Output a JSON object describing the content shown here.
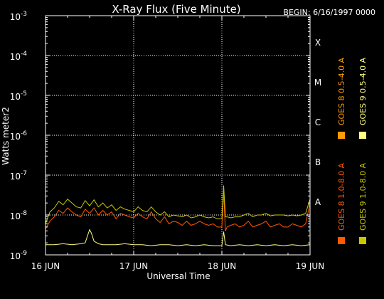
{
  "chart_data": {
    "type": "line",
    "title": "X-Ray Flux (Five Minute)",
    "begin_label": "BEGIN: 6/16/1997 0000",
    "ylabel": "Watts meter2",
    "xlabel": "Universal Time",
    "xlim": [
      "16 JUN",
      "19 JUN"
    ],
    "xticks": [
      "16 JUN",
      "17 JUN",
      "18 JUN",
      "19 JUN"
    ],
    "yscale": "log",
    "ylim": [
      1e-09,
      0.001
    ],
    "yticks": [
      {
        "base": "10",
        "exp": "-9"
      },
      {
        "base": "10",
        "exp": "-8"
      },
      {
        "base": "10",
        "exp": "-7"
      },
      {
        "base": "10",
        "exp": "-6"
      },
      {
        "base": "10",
        "exp": "-5"
      },
      {
        "base": "10",
        "exp": "-4"
      },
      {
        "base": "10",
        "exp": "-3"
      }
    ],
    "flare_classes": [
      {
        "label": "X",
        "flux": 0.0001
      },
      {
        "label": "M",
        "flux": 1e-05
      },
      {
        "label": "C",
        "flux": 1e-06
      },
      {
        "label": "B",
        "flux": 1e-07
      },
      {
        "label": "A",
        "flux": 1e-08
      }
    ],
    "grid": true,
    "series": [
      {
        "name": "GOES 8 1.0-8.0 A",
        "color": "#ff5a00",
        "x": [
          0.0,
          0.05,
          0.1,
          0.15,
          0.2,
          0.25,
          0.3,
          0.35,
          0.4,
          0.45,
          0.5,
          0.55,
          0.6,
          0.65,
          0.7,
          0.75,
          0.8,
          0.85,
          0.9,
          0.95,
          1.0,
          1.05,
          1.1,
          1.15,
          1.2,
          1.25,
          1.3,
          1.35,
          1.4,
          1.45,
          1.5,
          1.55,
          1.6,
          1.65,
          1.7,
          1.75,
          1.8,
          1.85,
          1.9,
          1.95,
          2.0,
          2.02,
          2.04,
          2.06,
          2.1,
          2.15,
          2.2,
          2.25,
          2.3,
          2.35,
          2.4,
          2.45,
          2.5,
          2.55,
          2.6,
          2.65,
          2.7,
          2.75,
          2.8,
          2.85,
          2.9,
          2.95,
          3.0
        ],
        "y": [
          4.5e-09,
          7e-09,
          9e-09,
          1.3e-08,
          1.1e-08,
          1.5e-08,
          1.2e-08,
          1e-08,
          9e-09,
          1.4e-08,
          1.1e-08,
          1.5e-08,
          1e-08,
          1.3e-08,
          1e-08,
          1.2e-08,
          8e-09,
          1.1e-08,
          1e-08,
          9e-09,
          8.5e-09,
          1.1e-08,
          9e-09,
          8e-09,
          1.2e-08,
          8e-09,
          6.5e-09,
          9e-09,
          6e-09,
          7e-09,
          6.5e-09,
          5.5e-09,
          7e-09,
          5.5e-09,
          6e-09,
          7e-09,
          6e-09,
          5.5e-09,
          6e-09,
          5e-09,
          5e-09,
          3.8e-08,
          4e-09,
          5e-09,
          5.5e-09,
          6e-09,
          5e-09,
          5.5e-09,
          7e-09,
          5e-09,
          5.5e-09,
          6e-09,
          7e-09,
          5e-09,
          5.5e-09,
          6e-09,
          5e-09,
          5e-09,
          6e-09,
          5.5e-09,
          5e-09,
          6e-09,
          2e-08
        ]
      },
      {
        "name": "GOES 8 0.5-4.0 A",
        "color": "#ff9a00",
        "x": [
          0.0,
          3.0
        ],
        "y": [
          null,
          null
        ]
      },
      {
        "name": "GOES 9 1.0-8.0 A",
        "color": "#c8c800",
        "x": [
          0.0,
          0.05,
          0.1,
          0.15,
          0.2,
          0.25,
          0.3,
          0.35,
          0.4,
          0.45,
          0.5,
          0.55,
          0.6,
          0.65,
          0.7,
          0.75,
          0.8,
          0.85,
          0.9,
          0.95,
          1.0,
          1.05,
          1.1,
          1.15,
          1.2,
          1.25,
          1.3,
          1.35,
          1.4,
          1.45,
          1.5,
          1.55,
          1.6,
          1.65,
          1.7,
          1.75,
          1.8,
          1.85,
          1.9,
          1.95,
          2.0,
          2.02,
          2.04,
          2.06,
          2.1,
          2.15,
          2.2,
          2.25,
          2.3,
          2.35,
          2.4,
          2.45,
          2.5,
          2.55,
          2.6,
          2.65,
          2.7,
          2.75,
          2.8,
          2.85,
          2.9,
          2.95,
          3.0
        ],
        "y": [
          6e-09,
          1.2e-08,
          1.5e-08,
          2.2e-08,
          1.8e-08,
          2.5e-08,
          2e-08,
          1.6e-08,
          1.5e-08,
          2.3e-08,
          1.7e-08,
          2.4e-08,
          1.6e-08,
          2e-08,
          1.5e-08,
          1.8e-08,
          1.3e-08,
          1.6e-08,
          1.4e-08,
          1.3e-08,
          1.2e-08,
          1.6e-08,
          1.3e-08,
          1.2e-08,
          1.6e-08,
          1.2e-08,
          1e-08,
          1.2e-08,
          9e-09,
          1e-08,
          9.5e-09,
          9e-09,
          1e-08,
          8.5e-09,
          9e-09,
          1e-08,
          9e-09,
          8.5e-09,
          9e-09,
          8e-09,
          8e-09,
          5.5e-08,
          9e-09,
          9e-09,
          8.5e-09,
          9e-09,
          9e-09,
          1e-08,
          1.1e-08,
          9e-09,
          1e-08,
          1e-08,
          1.1e-08,
          9.5e-09,
          1e-08,
          1e-08,
          1e-08,
          9.5e-09,
          1e-08,
          9.5e-09,
          1e-08,
          1.1e-08,
          2.5e-08
        ]
      },
      {
        "name": "GOES 9 0.5-4.0 A",
        "color": "#ffff80",
        "x": [
          0.0,
          0.1,
          0.2,
          0.3,
          0.4,
          0.45,
          0.5,
          0.52,
          0.55,
          0.6,
          0.65,
          0.7,
          0.8,
          0.9,
          1.0,
          1.1,
          1.2,
          1.3,
          1.4,
          1.5,
          1.6,
          1.7,
          1.8,
          1.9,
          2.0,
          2.02,
          2.04,
          2.1,
          2.2,
          2.3,
          2.4,
          2.5,
          2.6,
          2.7,
          2.8,
          2.9,
          3.0
        ],
        "y": [
          1.8e-09,
          1.8e-09,
          1.9e-09,
          1.8e-09,
          1.9e-09,
          2e-09,
          4.3e-09,
          3.5e-09,
          2.2e-09,
          1.9e-09,
          1.8e-09,
          1.8e-09,
          1.8e-09,
          1.9e-09,
          1.8e-09,
          1.8e-09,
          1.7e-09,
          1.8e-09,
          1.8e-09,
          1.7e-09,
          1.8e-09,
          1.7e-09,
          1.8e-09,
          1.7e-09,
          1.7e-09,
          3.8e-09,
          1.8e-09,
          1.7e-09,
          1.8e-09,
          1.7e-09,
          1.8e-09,
          1.7e-09,
          1.8e-09,
          1.7e-09,
          1.8e-09,
          1.7e-09,
          1.8e-09
        ]
      }
    ]
  }
}
